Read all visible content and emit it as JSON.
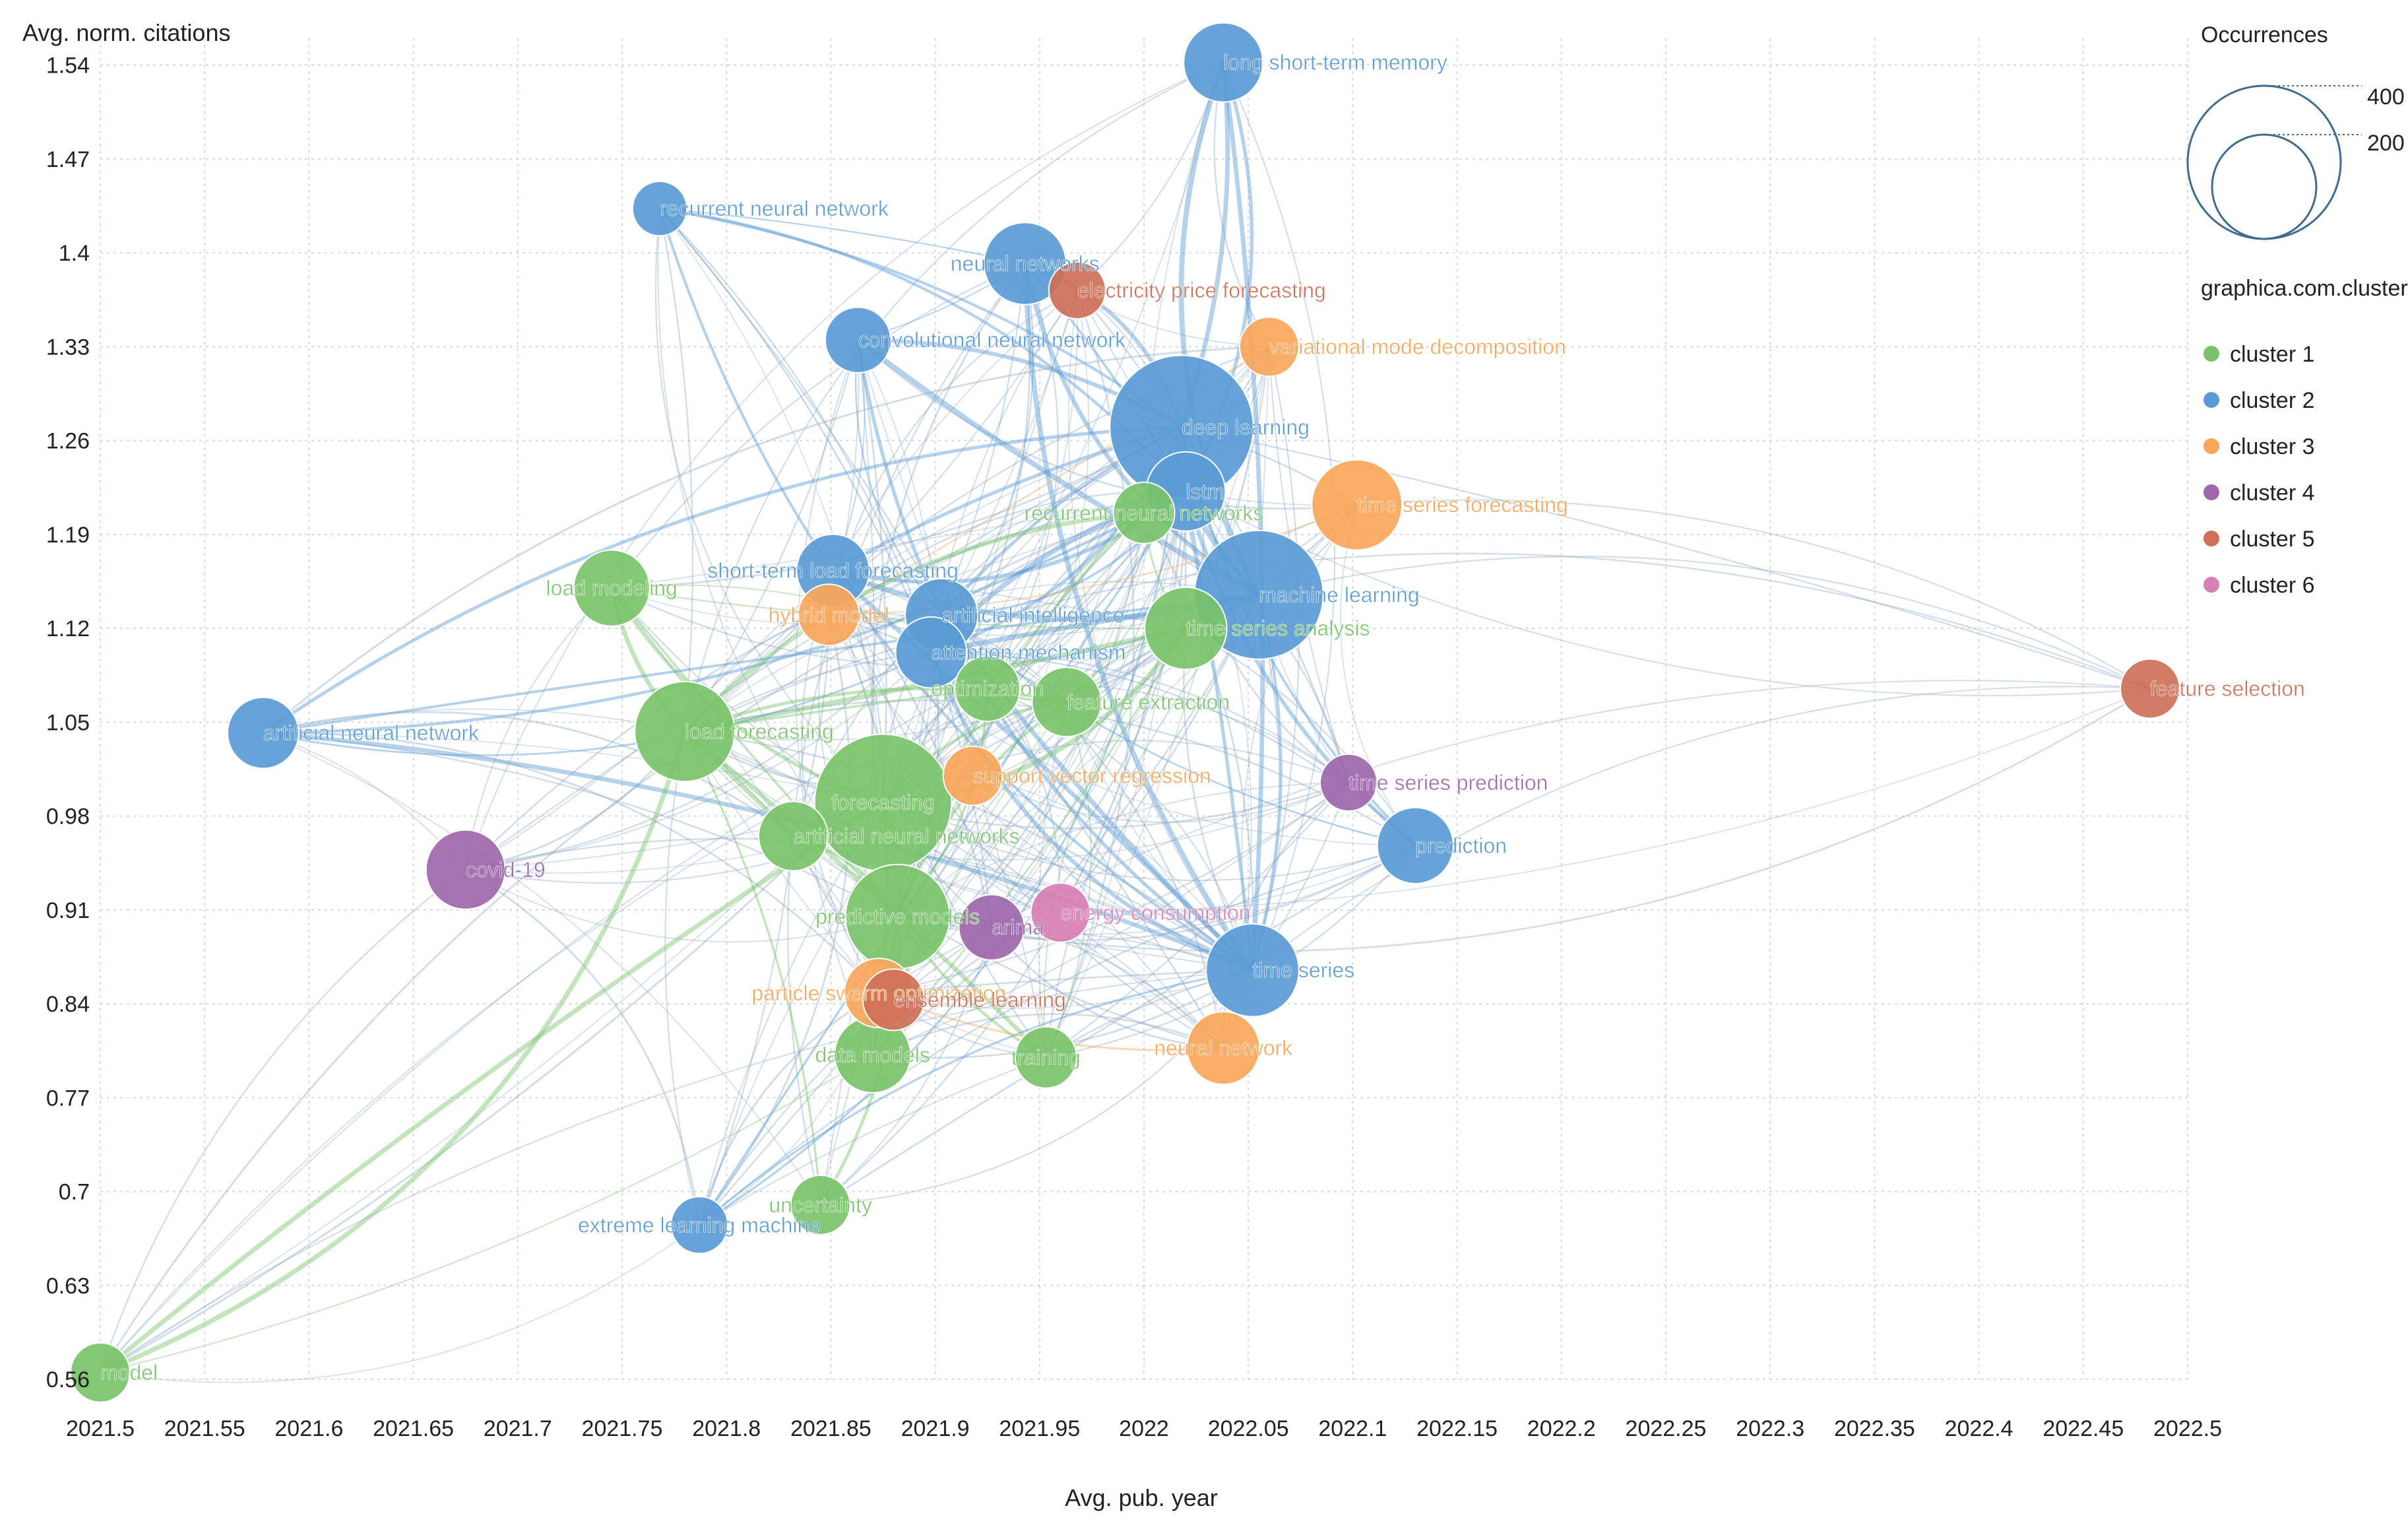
{
  "chart_data": {
    "type": "scatter",
    "variant": "bubble network map",
    "xlabel": "Avg. pub. year",
    "ylabel": "Avg. norm. citations",
    "xlim": [
      2021.5,
      2022.5
    ],
    "ylim": [
      0.56,
      1.56
    ],
    "x_ticks": [
      "2021.5",
      "2021.55",
      "2021.6",
      "2021.65",
      "2021.7",
      "2021.75",
      "2021.8",
      "2021.85",
      "2021.9",
      "2021.95",
      "2022",
      "2022.05",
      "2022.1",
      "2022.15",
      "2022.2",
      "2022.25",
      "2022.3",
      "2022.35",
      "2022.4",
      "2022.45",
      "2022.5"
    ],
    "y_ticks": [
      "1.54",
      "1.47",
      "1.4",
      "1.33",
      "1.26",
      "1.19",
      "1.12",
      "1.05",
      "0.98",
      "0.91",
      "0.84",
      "0.77",
      "0.7",
      "0.63",
      "0.56"
    ],
    "grid": true,
    "size_legend": {
      "title": "Occurrences",
      "values": [
        "400",
        "200"
      ]
    },
    "cluster_legend": {
      "title": "graphica.com.clusters",
      "items": [
        {
          "name": "cluster 1",
          "color": "#7ac36a"
        },
        {
          "name": "cluster 2",
          "color": "#5a9bd5"
        },
        {
          "name": "cluster 3",
          "color": "#f9a65a"
        },
        {
          "name": "cluster 4",
          "color": "#9e67ab"
        },
        {
          "name": "cluster 5",
          "color": "#ce7058"
        },
        {
          "name": "cluster 6",
          "color": "#d77fb3"
        }
      ]
    },
    "nodes": [
      {
        "label": "long short-term memory",
        "x": 2022.038,
        "y": 1.542,
        "occ": 100,
        "cluster": 2
      },
      {
        "label": "recurrent neural network",
        "x": 2021.768,
        "y": 1.433,
        "occ": 35,
        "cluster": 2
      },
      {
        "label": "neural networks",
        "x": 2021.943,
        "y": 1.392,
        "occ": 110,
        "cluster": 2
      },
      {
        "label": "electricity price forecasting",
        "x": 2021.968,
        "y": 1.372,
        "occ": 40,
        "cluster": 5
      },
      {
        "label": "convolutional neural network",
        "x": 2021.863,
        "y": 1.335,
        "occ": 60,
        "cluster": 2
      },
      {
        "label": "variational mode decomposition",
        "x": 2022.06,
        "y": 1.33,
        "occ": 45,
        "cluster": 3
      },
      {
        "label": "deep learning",
        "x": 2022.018,
        "y": 1.27,
        "occ": 425,
        "cluster": 2
      },
      {
        "label": "lstm",
        "x": 2022.02,
        "y": 1.222,
        "occ": 100,
        "cluster": 2
      },
      {
        "label": "recurrent neural networks",
        "x": 2022.0,
        "y": 1.206,
        "occ": 50,
        "cluster": 1
      },
      {
        "label": "time series forecasting",
        "x": 2022.102,
        "y": 1.212,
        "occ": 140,
        "cluster": 3
      },
      {
        "label": "load modeling",
        "x": 2021.745,
        "y": 1.15,
        "occ": 90,
        "cluster": 1
      },
      {
        "label": "short-term load forecasting",
        "x": 2021.851,
        "y": 1.163,
        "occ": 80,
        "cluster": 2
      },
      {
        "label": "machine learning",
        "x": 2022.055,
        "y": 1.145,
        "occ": 330,
        "cluster": 2
      },
      {
        "label": "hybrid model",
        "x": 2021.849,
        "y": 1.13,
        "occ": 50,
        "cluster": 3
      },
      {
        "label": "artificial intelligence",
        "x": 2021.903,
        "y": 1.13,
        "occ": 80,
        "cluster": 2
      },
      {
        "label": "time series analysis",
        "x": 2022.02,
        "y": 1.12,
        "occ": 110,
        "cluster": 1
      },
      {
        "label": "attention mechanism",
        "x": 2021.898,
        "y": 1.102,
        "occ": 75,
        "cluster": 2
      },
      {
        "label": "optimization",
        "x": 2021.925,
        "y": 1.075,
        "occ": 60,
        "cluster": 1
      },
      {
        "label": "feature extraction",
        "x": 2021.963,
        "y": 1.065,
        "occ": 70,
        "cluster": 1
      },
      {
        "label": "feature selection",
        "x": 2022.482,
        "y": 1.075,
        "occ": 45,
        "cluster": 5
      },
      {
        "label": "artificial neural network",
        "x": 2021.578,
        "y": 1.042,
        "occ": 75,
        "cluster": 2
      },
      {
        "label": "load forecasting",
        "x": 2021.78,
        "y": 1.043,
        "occ": 180,
        "cluster": 1
      },
      {
        "label": "support vector regression",
        "x": 2021.918,
        "y": 1.01,
        "occ": 45,
        "cluster": 3
      },
      {
        "label": "forecasting",
        "x": 2021.875,
        "y": 0.99,
        "occ": 380,
        "cluster": 1
      },
      {
        "label": "time series prediction",
        "x": 2022.098,
        "y": 1.005,
        "occ": 40,
        "cluster": 4
      },
      {
        "label": "artificial neural networks",
        "x": 2021.832,
        "y": 0.965,
        "occ": 70,
        "cluster": 1
      },
      {
        "label": "prediction",
        "x": 2022.13,
        "y": 0.958,
        "occ": 90,
        "cluster": 2
      },
      {
        "label": "covid-19",
        "x": 2021.675,
        "y": 0.94,
        "occ": 100,
        "cluster": 4
      },
      {
        "label": "predictive models",
        "x": 2021.882,
        "y": 0.905,
        "occ": 200,
        "cluster": 1
      },
      {
        "label": "arima",
        "x": 2021.927,
        "y": 0.897,
        "occ": 60,
        "cluster": 4
      },
      {
        "label": "energy consumption",
        "x": 2021.96,
        "y": 0.908,
        "occ": 45,
        "cluster": 6
      },
      {
        "label": "time series",
        "x": 2022.052,
        "y": 0.865,
        "occ": 150,
        "cluster": 2
      },
      {
        "label": "particle swarm optimization",
        "x": 2021.873,
        "y": 0.848,
        "occ": 70,
        "cluster": 3
      },
      {
        "label": "ensemble learning",
        "x": 2021.88,
        "y": 0.843,
        "occ": 50,
        "cluster": 5
      },
      {
        "label": "data models",
        "x": 2021.87,
        "y": 0.802,
        "occ": 90,
        "cluster": 1
      },
      {
        "label": "training",
        "x": 2021.953,
        "y": 0.8,
        "occ": 50,
        "cluster": 1
      },
      {
        "label": "neural network",
        "x": 2022.038,
        "y": 0.807,
        "occ": 80,
        "cluster": 3
      },
      {
        "label": "uncertainty",
        "x": 2021.845,
        "y": 0.69,
        "occ": 45,
        "cluster": 1
      },
      {
        "label": "extreme learning machine",
        "x": 2021.787,
        "y": 0.675,
        "occ": 40,
        "cluster": 2
      },
      {
        "label": "model",
        "x": 2021.5,
        "y": 0.565,
        "occ": 45,
        "cluster": 1
      }
    ]
  }
}
